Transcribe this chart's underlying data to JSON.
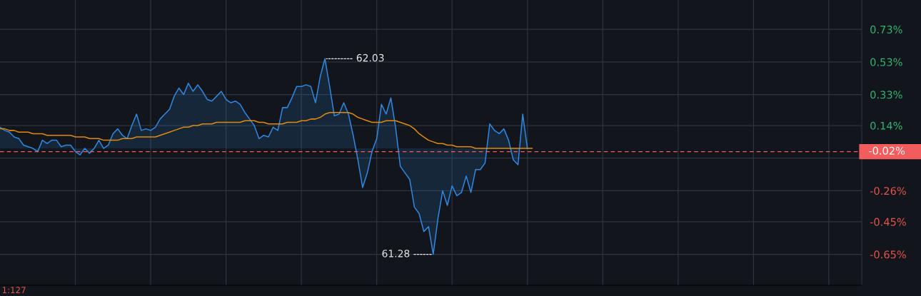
{
  "chart_data": {
    "type": "line",
    "categories": [
      null,
      null,
      null,
      null,
      null,
      null,
      null,
      null,
      null,
      null,
      null,
      null,
      null,
      null,
      null,
      null,
      null,
      null,
      null,
      null,
      null,
      null,
      null,
      null,
      null,
      null,
      null,
      null,
      null,
      null,
      null,
      null,
      null,
      null,
      null,
      null,
      null,
      null,
      null,
      null,
      null,
      null,
      null,
      null,
      null,
      null,
      null,
      null,
      null,
      null,
      null,
      null,
      null,
      null,
      null,
      null,
      null,
      null,
      null,
      null,
      null,
      null,
      null,
      null,
      null,
      null,
      null,
      null,
      null,
      null,
      null,
      null,
      null,
      null,
      null,
      null,
      null,
      null,
      null,
      null,
      null,
      null,
      null,
      null,
      null,
      null,
      null,
      null,
      null,
      null,
      null,
      null,
      null,
      null,
      null,
      null,
      null,
      null,
      null,
      null,
      null,
      null,
      null,
      null,
      null,
      null,
      null,
      null,
      null,
      null,
      null,
      null,
      null,
      null,
      null,
      null,
      null,
      null,
      null,
      null,
      null,
      null,
      null,
      null,
      null,
      null,
      null,
      null,
      null,
      null,
      null,
      null,
      null,
      null,
      null,
      null,
      null,
      null,
      null,
      null,
      null,
      null,
      null,
      null,
      null,
      null,
      null,
      null,
      null,
      null,
      null,
      null,
      null,
      null,
      null,
      null,
      null,
      null,
      null,
      null,
      null,
      null,
      null,
      null,
      null,
      null,
      null,
      null,
      null,
      null,
      null,
      null,
      null,
      null,
      null,
      null,
      null,
      null,
      null,
      null,
      null,
      null,
      null,
      null
    ],
    "series": [
      {
        "type": "area",
        "color": "#2f87e0",
        "values": [
          0.13,
          0.11,
          0.1,
          0.07,
          0.06,
          0.02,
          0.01,
          0.0,
          -0.02,
          0.05,
          0.03,
          0.05,
          0.05,
          0.01,
          0.02,
          0.02,
          -0.02,
          -0.04,
          0.0,
          -0.03,
          0.0,
          0.05,
          0.0,
          0.02,
          0.09,
          0.12,
          0.08,
          0.06,
          0.14,
          0.21,
          0.11,
          0.12,
          0.11,
          0.13,
          0.18,
          0.21,
          0.24,
          0.32,
          0.37,
          0.33,
          0.4,
          0.35,
          0.39,
          0.35,
          0.3,
          0.29,
          0.32,
          0.35,
          0.3,
          0.28,
          0.29,
          0.27,
          0.22,
          0.18,
          0.14,
          0.06,
          0.08,
          0.07,
          0.13,
          0.11,
          0.25,
          0.25,
          0.31,
          0.38,
          0.38,
          0.39,
          0.38,
          0.28,
          0.44,
          0.55,
          0.38,
          0.2,
          0.21,
          0.28,
          0.21,
          0.08,
          -0.07,
          -0.24,
          -0.15,
          -0.02,
          0.06,
          0.27,
          0.21,
          0.31,
          0.13,
          -0.11,
          -0.15,
          -0.19,
          -0.36,
          -0.4,
          -0.51,
          -0.48,
          -0.65,
          -0.43,
          -0.26,
          -0.35,
          -0.23,
          -0.29,
          -0.27,
          -0.17,
          -0.27,
          -0.13,
          -0.13,
          -0.09,
          0.15,
          0.11,
          0.09,
          0.12,
          0.05,
          -0.07,
          -0.1,
          0.21,
          0.0,
          null,
          null,
          null,
          null,
          null,
          null,
          null,
          null,
          null,
          null,
          null,
          null,
          null,
          null,
          null,
          null,
          null,
          null,
          null,
          null,
          null,
          null,
          null,
          null,
          null,
          null,
          null,
          null,
          null,
          null,
          null,
          null,
          null,
          null,
          null,
          null,
          null,
          null,
          null,
          null,
          null,
          null,
          null,
          null,
          null,
          null,
          null,
          null,
          null,
          null,
          null,
          null,
          null,
          null,
          null,
          null,
          null,
          null,
          null,
          null,
          null,
          null,
          null,
          null,
          null,
          null,
          null,
          null,
          null,
          null,
          null
        ]
      },
      {
        "color": "#e08a0b",
        "values": [
          0.12,
          0.12,
          0.11,
          0.11,
          0.1,
          0.1,
          0.1,
          0.09,
          0.09,
          0.09,
          0.08,
          0.08,
          0.08,
          0.08,
          0.08,
          0.08,
          0.07,
          0.07,
          0.07,
          0.06,
          0.06,
          0.06,
          0.05,
          0.05,
          0.05,
          0.05,
          0.06,
          0.06,
          0.06,
          0.07,
          0.07,
          0.07,
          0.07,
          0.07,
          0.08,
          0.09,
          0.1,
          0.11,
          0.12,
          0.13,
          0.13,
          0.14,
          0.14,
          0.15,
          0.15,
          0.15,
          0.16,
          0.16,
          0.16,
          0.16,
          0.16,
          0.16,
          0.17,
          0.17,
          0.17,
          0.16,
          0.16,
          0.15,
          0.15,
          0.15,
          0.15,
          0.16,
          0.16,
          0.16,
          0.17,
          0.17,
          0.18,
          0.18,
          0.19,
          0.21,
          0.22,
          0.22,
          0.22,
          0.22,
          0.22,
          0.21,
          0.19,
          0.18,
          0.17,
          0.16,
          0.16,
          0.16,
          0.17,
          0.17,
          0.17,
          0.16,
          0.15,
          0.14,
          0.12,
          0.09,
          0.07,
          0.05,
          0.04,
          0.03,
          0.03,
          0.02,
          0.02,
          0.01,
          0.01,
          0.01,
          0.01,
          0.0,
          0.0,
          0.0,
          0.0,
          0.0,
          0.0,
          0.0,
          0.0,
          0.0,
          0.0,
          0.0,
          0.0,
          0.0,
          null,
          null,
          null,
          null,
          null,
          null,
          null,
          null,
          null,
          null,
          null,
          null,
          null,
          null,
          null,
          null,
          null,
          null,
          null,
          null,
          null,
          null,
          null,
          null,
          null,
          null,
          null,
          null,
          null,
          null,
          null,
          null,
          null,
          null,
          null,
          null,
          null,
          null,
          null,
          null,
          null,
          null,
          null,
          null,
          null,
          null,
          null,
          null,
          null,
          null,
          null,
          null,
          null,
          null,
          null,
          null,
          null,
          null,
          null,
          null,
          null,
          null,
          null,
          null,
          null,
          null,
          null,
          null,
          null,
          null
        ]
      }
    ],
    "ylim": [
      -0.84,
      0.91
    ],
    "yticks": [
      {
        "value": 0.73,
        "label": "0.73%"
      },
      {
        "value": 0.53,
        "label": "0.53%"
      },
      {
        "value": 0.33,
        "label": "0.33%"
      },
      {
        "value": 0.14,
        "label": "0.14%"
      },
      {
        "value": -0.06,
        "label": null
      },
      {
        "value": -0.26,
        "label": "-0.26%"
      },
      {
        "value": -0.45,
        "label": "-0.45%"
      },
      {
        "value": -0.65,
        "label": "-0.65%"
      }
    ],
    "ref_lines": [
      {
        "axis": "y",
        "value": -0.02,
        "label": "-0.02%",
        "color": "#f25c5c",
        "line_style": "dashed"
      }
    ],
    "annotations": [
      "62.03",
      "61.28",
      "1:127"
    ],
    "grid": true
  }
}
